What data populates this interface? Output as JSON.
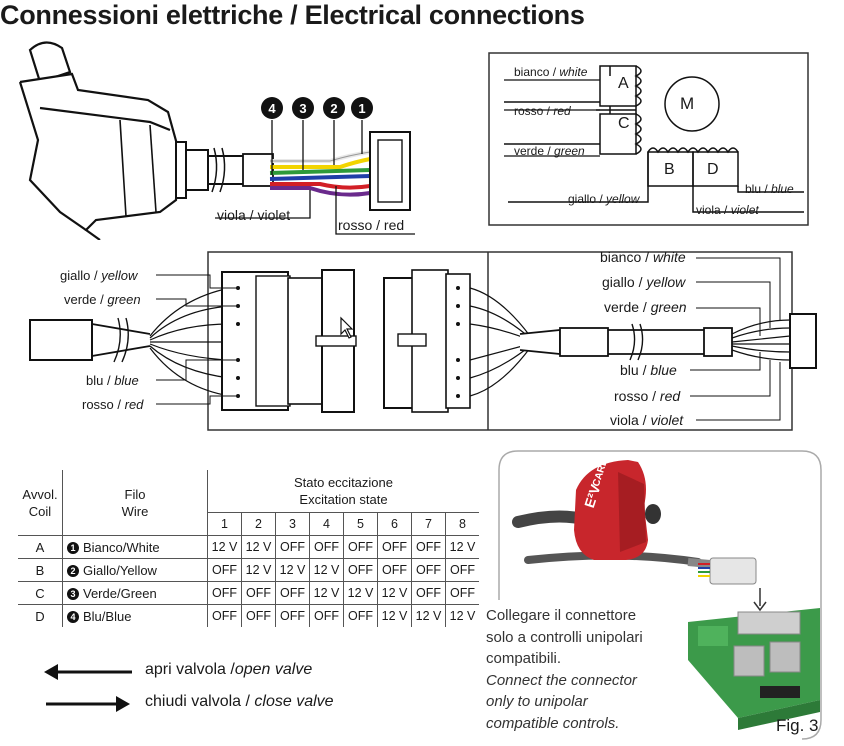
{
  "title": "Connessioni elettriche / Electrical connections",
  "top_wires": {
    "numbers": [
      "4",
      "3",
      "2",
      "1"
    ],
    "violet_label_it": "viola / ",
    "violet_label_en": "violet",
    "red_label_it": "rosso / ",
    "red_label_en": "red"
  },
  "motor_box": {
    "motor_letter": "M",
    "coils": [
      "A",
      "C",
      "B",
      "D"
    ],
    "white_it": "bianco / ",
    "white_en": "white",
    "red_it": "rosso / ",
    "red_en": "red",
    "green_it": "verde / ",
    "green_en": "green",
    "yellow_it": "giallo / ",
    "yellow_en": "yellow",
    "violet_it": "viola / ",
    "violet_en": "violet",
    "blue_it": "blu / ",
    "blue_en": "blue"
  },
  "connector_left": {
    "yellow_it": "giallo / ",
    "yellow_en": "yellow",
    "green_it": "verde / ",
    "green_en": "green",
    "blue_it": "blu / ",
    "blue_en": "blue",
    "red_it": "rosso / ",
    "red_en": "red"
  },
  "connector_right": {
    "white_it": "bianco / ",
    "white_en": "white",
    "yellow_it": "giallo / ",
    "yellow_en": "yellow",
    "green_it": "verde / ",
    "green_en": "green",
    "blue_it": "blu / ",
    "blue_en": "blue",
    "red_it": "rosso / ",
    "red_en": "red",
    "violet_it": "viola / ",
    "violet_en": "violet"
  },
  "table": {
    "h_coil_1": "Avvol.",
    "h_coil_2": "Coil",
    "h_wire_1": "Filo",
    "h_wire_2": "Wire",
    "h_state_1": "Stato eccitazione",
    "h_state_2": "Excitation state",
    "steps": [
      "1",
      "2",
      "3",
      "4",
      "5",
      "6",
      "7",
      "8"
    ],
    "rows": [
      {
        "coil": "A",
        "num": "1",
        "wire": "Bianco/White",
        "states": [
          "12 V",
          "12 V",
          "OFF",
          "OFF",
          "OFF",
          "OFF",
          "OFF",
          "12 V"
        ]
      },
      {
        "coil": "B",
        "num": "2",
        "wire": "Giallo/Yellow",
        "states": [
          "OFF",
          "12 V",
          "12 V",
          "12 V",
          "OFF",
          "OFF",
          "OFF",
          "OFF"
        ]
      },
      {
        "coil": "C",
        "num": "3",
        "wire": "Verde/Green",
        "states": [
          "OFF",
          "OFF",
          "OFF",
          "12 V",
          "12 V",
          "12 V",
          "OFF",
          "OFF"
        ]
      },
      {
        "coil": "D",
        "num": "4",
        "wire": "Blu/Blue",
        "states": [
          "OFF",
          "OFF",
          "OFF",
          "OFF",
          "OFF",
          "12 V",
          "12 V",
          "12 V"
        ]
      }
    ]
  },
  "arrows": {
    "open_it": "apri valvola /",
    "open_en": "open valve",
    "close_it": "chiudi valvola / ",
    "close_en": "close valve"
  },
  "note": {
    "it_1": "Collegare il connettore",
    "it_2": "solo a controlli unipolari",
    "it_3": "compatibili.",
    "en_1": "Connect the connector",
    "en_2": "only to unipolar",
    "en_3": "compatible controls."
  },
  "brand_label": "CAREL",
  "product_label": "E²V",
  "figure_label": "Fig. 3",
  "colors": {
    "white": "#f2f2f2",
    "yellow": "#f2d400",
    "green": "#2e9a3a",
    "blue": "#1f3ea8",
    "red": "#d21f26",
    "violet": "#6a2a8c",
    "carel_red": "#c8262c",
    "board_green": "#3c9a4a"
  }
}
